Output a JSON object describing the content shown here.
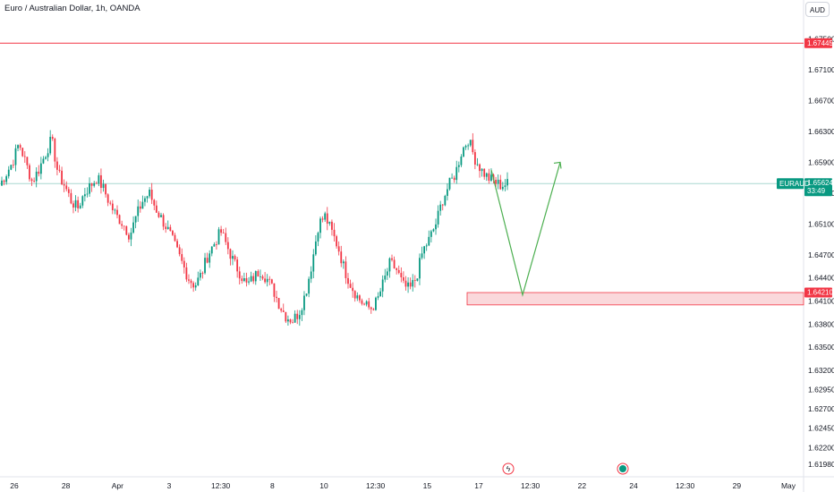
{
  "header": {
    "title": "Euro / Australian Dollar, 1h, OANDA",
    "currency": "AUD"
  },
  "colors": {
    "up": "#089981",
    "down": "#f23645",
    "resistance": "#f23645",
    "zone_fill": "#f8c8cc",
    "arrow": "#4caf50",
    "price_line": "#a8d8d0"
  },
  "chart_data": {
    "type": "candlestick",
    "symbol": "EURAUD",
    "ylim": [
      1.6182,
      1.6775
    ],
    "y_ticks": [
      "1.67500",
      "1.67100",
      "1.66700",
      "1.66300",
      "1.65900",
      "1.65500",
      "1.65100",
      "1.64700",
      "1.64400",
      "1.64100",
      "1.63800",
      "1.63500",
      "1.63200",
      "1.62950",
      "1.62700",
      "1.62450",
      "1.62200",
      "1.61980"
    ],
    "x_ticks": [
      "26",
      "28",
      "Apr",
      "3",
      "12:30",
      "8",
      "10",
      "12:30",
      "15",
      "17",
      "12:30",
      "22",
      "24",
      "12:30",
      "29",
      "May"
    ],
    "close_trace": [
      1.656,
      1.6575,
      1.659,
      1.6615,
      1.659,
      1.6565,
      1.658,
      1.66,
      1.662,
      1.6575,
      1.656,
      1.654,
      1.653,
      1.655,
      1.656,
      1.657,
      1.6555,
      1.6535,
      1.652,
      1.651,
      1.6495,
      1.652,
      1.654,
      1.655,
      1.653,
      1.6515,
      1.65,
      1.648,
      1.646,
      1.644,
      1.643,
      1.6445,
      1.647,
      1.6485,
      1.65,
      1.648,
      1.646,
      1.6445,
      1.643,
      1.644,
      1.645,
      1.644,
      1.6425,
      1.6405,
      1.639,
      1.6385,
      1.6395,
      1.642,
      1.646,
      1.651,
      1.652,
      1.65,
      1.648,
      1.645,
      1.643,
      1.6415,
      1.6405,
      1.64,
      1.641,
      1.6435,
      1.646,
      1.645,
      1.643,
      1.6425,
      1.644,
      1.6475,
      1.649,
      1.651,
      1.654,
      1.656,
      1.6575,
      1.6605,
      1.662,
      1.6595,
      1.658,
      1.657,
      1.6565,
      1.656,
      1.6562
    ],
    "last_price": {
      "symbol": "EURAUD",
      "value": "1.65624",
      "countdown": "33:49",
      "value_num": 1.65624
    },
    "resistance": {
      "value": "1.67445",
      "value_num": 1.67445
    },
    "support_zone": {
      "label": "1.64210",
      "top": 1.6421,
      "bottom": 1.6405
    },
    "projection": [
      [
        1.658,
        1.6418
      ],
      [
        1.6418,
        1.659
      ]
    ]
  },
  "bottom_markers": {
    "marker1": "ϟ",
    "marker2": "●"
  }
}
